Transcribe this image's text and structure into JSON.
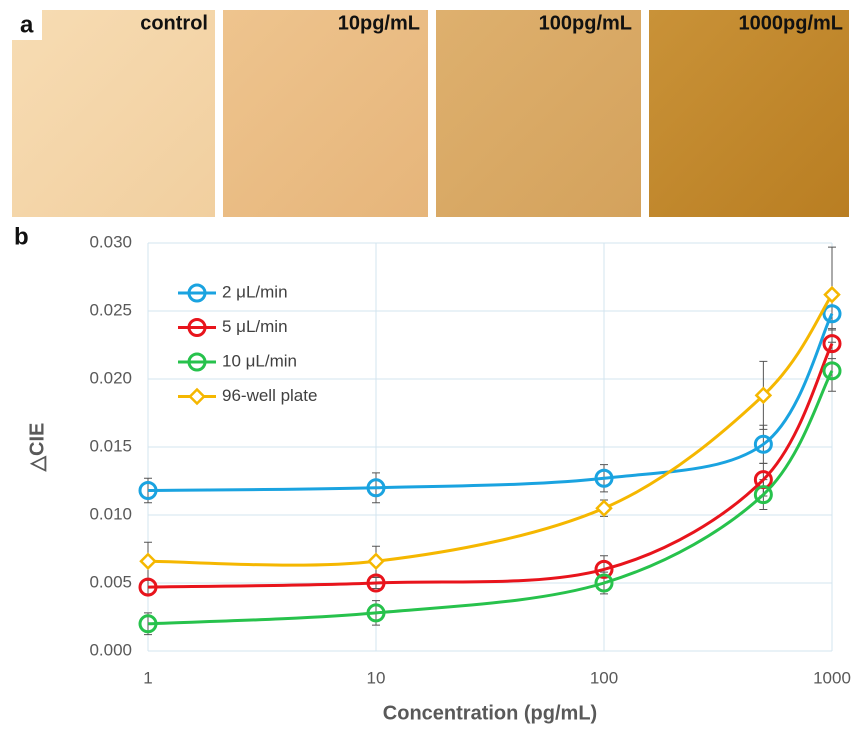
{
  "panel_a": {
    "label": "a",
    "images": [
      "control",
      "10pg/mL",
      "100pg/mL",
      "1000pg/mL"
    ]
  },
  "chart_data": {
    "type": "line",
    "panel_label": "b",
    "x_label": "Concentration (pg/mL)",
    "y_label": "△CIE",
    "x": [
      1,
      10,
      100,
      500,
      1000
    ],
    "xscale": "log",
    "xlim": [
      1,
      1000
    ],
    "xticks": [
      1,
      10,
      100,
      1000
    ],
    "ylim": [
      0,
      0.03
    ],
    "yticks": [
      {
        "value": 0,
        "label": "0.000"
      },
      {
        "value": 0.005,
        "label": "0.005"
      },
      {
        "value": 0.01,
        "label": "0.010"
      },
      {
        "value": 0.015,
        "label": "0.015"
      },
      {
        "value": 0.02,
        "label": "0.020"
      },
      {
        "value": 0.025,
        "label": "0.025"
      },
      {
        "value": 0.03,
        "label": "0.030"
      }
    ],
    "grid": true,
    "legend": "upper left",
    "series": [
      {
        "name": "2 μL/min",
        "color": "#1aa3e0",
        "marker": "circle",
        "values": [
          0.0118,
          0.012,
          0.0127,
          0.0152,
          0.0248
        ],
        "errors": [
          0.0009,
          0.0011,
          0.001,
          0.0014,
          0.0012
        ]
      },
      {
        "name": "5 μL/min",
        "color": "#e8141c",
        "marker": "circle",
        "values": [
          0.0047,
          0.005,
          0.006,
          0.0126,
          0.0226
        ],
        "errors": [
          0.0005,
          0.0004,
          0.001,
          0.0012,
          0.0011
        ]
      },
      {
        "name": "10 μL/min",
        "color": "#27c24c",
        "marker": "circle",
        "values": [
          0.002,
          0.0028,
          0.005,
          0.0115,
          0.0206
        ],
        "errors": [
          0.0008,
          0.0009,
          0.0008,
          0.0011,
          0.0015
        ]
      },
      {
        "name": "96-well plate",
        "color": "#f5b700",
        "marker": "diamond",
        "values": [
          0.0066,
          0.0066,
          0.0105,
          0.0188,
          0.0262
        ],
        "errors": [
          0.0014,
          0.0011,
          0.0006,
          0.0025,
          0.0035
        ]
      }
    ]
  }
}
